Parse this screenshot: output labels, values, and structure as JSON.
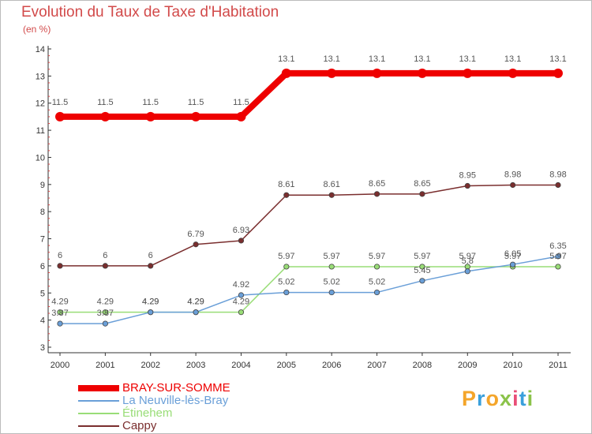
{
  "title": "Evolution du Taux de Taxe d'Habitation",
  "subtitle": "(en %)",
  "logo": {
    "text": "Proxiti",
    "colors": [
      "#f4a52a",
      "#3aa0dc",
      "#f4a52a",
      "#8bc34a",
      "#e94e77",
      "#3aa0dc",
      "#8bc34a"
    ]
  },
  "chart_data": {
    "type": "line",
    "x": [
      "2000",
      "2001",
      "2002",
      "2003",
      "2004",
      "2005",
      "2006",
      "2007",
      "2008",
      "2009",
      "2010",
      "2011"
    ],
    "ylim": [
      3,
      14
    ],
    "yticks": [
      "3",
      "4",
      "5",
      "6",
      "7",
      "8",
      "9",
      "10",
      "11",
      "12",
      "13",
      "14"
    ],
    "grid": false,
    "legend_position": "bottom-left",
    "series": [
      {
        "name": "BRAY-SUR-SOMME",
        "color": "#ee0000",
        "values": [
          11.5,
          11.5,
          11.5,
          11.5,
          11.5,
          13.1,
          13.1,
          13.1,
          13.1,
          13.1,
          13.1,
          13.1
        ],
        "labels": [
          "11.5",
          "11.5",
          "11.5",
          "11.5",
          "11.5",
          "13.1",
          "13.1",
          "13.1",
          "13.1",
          "13.1",
          "13.1",
          "13.1"
        ]
      },
      {
        "name": "La Neuville-lès-Bray",
        "color": "#6a9fd8",
        "values": [
          3.87,
          3.87,
          4.29,
          4.29,
          4.92,
          5.02,
          5.02,
          5.02,
          5.45,
          5.8,
          6.05,
          6.35
        ],
        "labels": [
          "3.87",
          "3.87",
          "4.29",
          "4.29",
          "4.92",
          "5.02",
          "5.02",
          "5.02",
          "5.45",
          "5.8",
          "6.05",
          "6.35"
        ]
      },
      {
        "name": "Étinehem",
        "color": "#99dd77",
        "values": [
          4.29,
          4.29,
          4.29,
          4.29,
          4.29,
          5.97,
          5.97,
          5.97,
          5.97,
          5.97,
          5.97,
          5.97
        ],
        "labels": [
          "4.29",
          "4.29",
          "4.29",
          "4.29",
          "4.29",
          "5.97",
          "5.97",
          "5.97",
          "5.97",
          "5.97",
          "5.97",
          "5.97"
        ]
      },
      {
        "name": "Cappy",
        "color": "#7a2e2e",
        "values": [
          6,
          6,
          6,
          6.79,
          6.93,
          8.61,
          8.61,
          8.65,
          8.65,
          8.95,
          8.98,
          8.98
        ],
        "labels": [
          "6",
          "6",
          "6",
          "6.79",
          "6.93",
          "8.61",
          "8.61",
          "8.65",
          "8.65",
          "8.95",
          "8.98",
          "8.98"
        ]
      }
    ]
  }
}
